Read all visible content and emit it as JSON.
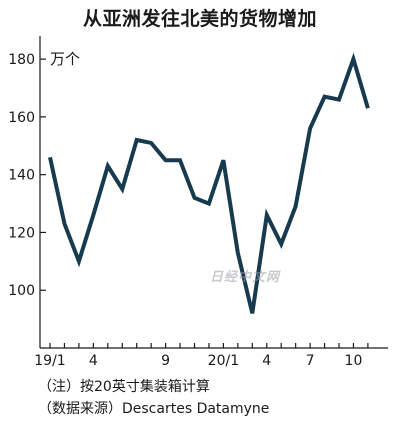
{
  "chart_data": {
    "type": "line",
    "title": "从亚洲发往北美的货物增加",
    "unit_label": "万个",
    "yticks": [
      100,
      120,
      140,
      160,
      180
    ],
    "ylim": [
      80,
      188
    ],
    "xticks": [
      {
        "index": 0,
        "label": "19/1"
      },
      {
        "index": 3,
        "label": "4"
      },
      {
        "index": 8,
        "label": "9"
      },
      {
        "index": 12,
        "label": "20/1"
      },
      {
        "index": 15,
        "label": "4"
      },
      {
        "index": 18,
        "label": "7"
      },
      {
        "index": 21,
        "label": "10"
      }
    ],
    "x": [
      "19/1",
      "19/2",
      "19/3",
      "19/4",
      "19/5",
      "19/6",
      "19/7",
      "19/8",
      "19/9",
      "19/10",
      "19/11",
      "19/12",
      "20/1",
      "20/2",
      "20/3",
      "20/4",
      "20/5",
      "20/6",
      "20/7",
      "20/8",
      "20/9",
      "20/10",
      "20/11"
    ],
    "values": [
      146,
      123,
      110,
      126,
      143,
      135,
      152,
      151,
      145,
      145,
      132,
      130,
      145,
      113,
      92,
      126,
      116,
      129,
      156,
      167,
      166,
      180,
      163
    ],
    "line_color": "#173a4e",
    "grid": false
  },
  "notes": {
    "line1": "（注）按20英寸集装箱计算",
    "line2": "（数据来源）Descartes Datamyne"
  },
  "watermark": "日经中文网"
}
